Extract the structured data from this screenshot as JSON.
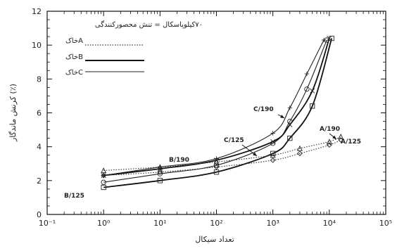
{
  "chart_data": {
    "type": "line",
    "xlabel": "تعداد سیکال",
    "ylabel": "کرنش ماندگار (٪)",
    "x_scale": "log",
    "xlim": [
      0.1,
      100000
    ],
    "ylim": [
      0,
      12
    ],
    "x_ticks": [
      "10⁻¹",
      "10⁰",
      "10¹",
      "10²",
      "10³",
      "10⁴",
      "10⁵"
    ],
    "y_ticks": [
      "0",
      "2",
      "4",
      "6",
      "8",
      "10",
      "12"
    ],
    "legend_title": "٧٠کیلوپاسکال = تنش محصورکنندگی",
    "legend": [
      {
        "label": "خاکA",
        "style": "dotted"
      },
      {
        "label": "خاکB",
        "style": "bold"
      },
      {
        "label": "خاکC",
        "style": "solid"
      }
    ],
    "series": [
      {
        "name": "C/190",
        "x": [
          1,
          10,
          100,
          1000,
          2000,
          4000,
          8000
        ],
        "y": [
          2.3,
          2.8,
          3.3,
          4.8,
          6.3,
          8.3,
          10.3
        ]
      },
      {
        "name": "C/125",
        "x": [
          1,
          10,
          100,
          1000,
          2000,
          4000,
          9000
        ],
        "y": [
          1.9,
          2.4,
          2.9,
          4.2,
          5.5,
          7.4,
          10.3
        ]
      },
      {
        "name": "B/190",
        "x": [
          1,
          10,
          100,
          1000,
          2000,
          5000,
          10000
        ],
        "y": [
          2.3,
          2.7,
          3.2,
          4.3,
          5.3,
          7.3,
          10.4
        ]
      },
      {
        "name": "B/125",
        "x": [
          1,
          10,
          100,
          1000,
          2000,
          5000,
          11000
        ],
        "y": [
          1.6,
          2.0,
          2.5,
          3.6,
          4.5,
          6.4,
          10.4
        ]
      },
      {
        "name": "A/190",
        "x": [
          1,
          10,
          100,
          1000,
          3000,
          10000,
          16000
        ],
        "y": [
          2.6,
          2.8,
          3.1,
          3.5,
          3.9,
          4.3,
          4.6
        ]
      },
      {
        "name": "A/125",
        "x": [
          1,
          10,
          100,
          1000,
          3000,
          10000,
          16000
        ],
        "y": [
          2.3,
          2.5,
          2.8,
          3.2,
          3.6,
          4.1,
          4.4
        ]
      }
    ],
    "annotations": [
      "C/190",
      "C/125",
      "B/190",
      "B/125",
      "A/190",
      "A/125"
    ],
    "grid": false
  }
}
